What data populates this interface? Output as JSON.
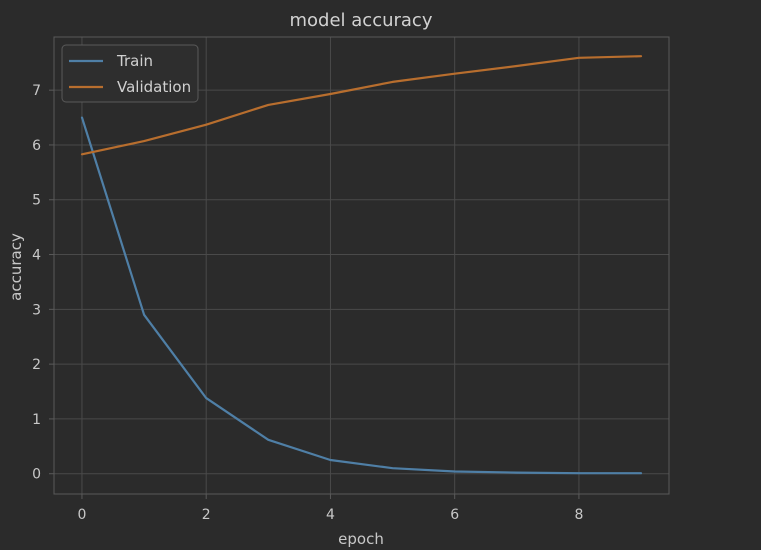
{
  "chart_data": {
    "type": "line",
    "title": "model accuracy",
    "xlabel": "epoch",
    "ylabel": "accuracy",
    "x": [
      0,
      1,
      2,
      3,
      4,
      5,
      6,
      7,
      8,
      9
    ],
    "series": [
      {
        "name": "Train",
        "color": "#4f7fa6",
        "values": [
          6.5,
          2.9,
          1.38,
          0.62,
          0.25,
          0.1,
          0.04,
          0.02,
          0.01,
          0.01
        ]
      },
      {
        "name": "Validation",
        "color": "#b86e2e",
        "values": [
          5.83,
          6.07,
          6.37,
          6.73,
          6.93,
          7.15,
          7.3,
          7.44,
          7.59,
          7.62
        ]
      }
    ],
    "xticks": [
      0,
      2,
      4,
      6,
      8
    ],
    "yticks": [
      0,
      1,
      2,
      3,
      4,
      5,
      6,
      7
    ],
    "xlim": [
      -0.45,
      9.45
    ],
    "ylim": [
      -0.37,
      7.97
    ],
    "grid": true,
    "legend_position": "top-left",
    "colors": {
      "background": "#2b2b2b",
      "grid": "#4a4a4a",
      "spine": "#5a5a5a",
      "text": "#c8c8c8"
    }
  }
}
